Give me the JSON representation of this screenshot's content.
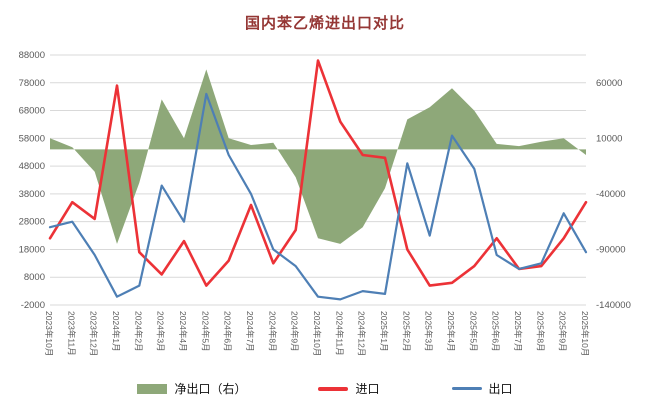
{
  "colors": {
    "title": "#953735",
    "net_export_area": "#8ea879",
    "import_line": "#ec3237",
    "export_line": "#4e7fb5",
    "gridline": "#d9d9d9",
    "axis_text": "#595959"
  },
  "chart_data": {
    "type": "area+line",
    "title": "国内苯乙烯进出口对比",
    "categories": [
      "2023年10月",
      "2023年11月",
      "2023年12月",
      "2024年1月",
      "2024年2月",
      "2024年3月",
      "2024年4月",
      "2024年5月",
      "2024年6月",
      "2024年7月",
      "2024年8月",
      "2024年9月",
      "2024年10月",
      "2024年11月",
      "2024年12月",
      "2025年1月",
      "2025年2月",
      "2025年3月",
      "2025年4月",
      "2025年5月",
      "2025年6月",
      "2025年7月",
      "2025年8月",
      "2025年9月",
      "2025年10月"
    ],
    "series": [
      {
        "name": "净出口（右）",
        "type": "area",
        "axis": "right",
        "values": [
          10000,
          2000,
          -20000,
          -85000,
          -30000,
          45000,
          10000,
          72000,
          10000,
          4000,
          6000,
          -25000,
          -80000,
          -85000,
          -70000,
          -35000,
          27000,
          38000,
          55000,
          35000,
          5000,
          3000,
          7000,
          10000,
          -5000
        ]
      },
      {
        "name": "进口",
        "type": "line",
        "axis": "left",
        "values": [
          22000,
          35000,
          29000,
          77000,
          17000,
          9000,
          21000,
          5000,
          14000,
          34000,
          13000,
          25000,
          86000,
          64000,
          52000,
          51000,
          18000,
          5000,
          6000,
          12000,
          22000,
          11000,
          12000,
          22000,
          35000
        ]
      },
      {
        "name": "出口",
        "type": "line",
        "axis": "left",
        "values": [
          26000,
          28000,
          16000,
          1000,
          5000,
          41000,
          28000,
          74000,
          52000,
          38000,
          18000,
          12000,
          1000,
          0,
          3000,
          2000,
          49000,
          23000,
          59000,
          47000,
          16000,
          11000,
          13000,
          31000,
          17000
        ]
      }
    ],
    "left_axis": {
      "min": -2000,
      "max": 88000,
      "ticks": [
        -2000,
        8000,
        18000,
        28000,
        38000,
        48000,
        58000,
        68000,
        78000,
        88000
      ]
    },
    "right_axis": {
      "min": -140000,
      "max": 60000,
      "ticks": [
        -140000,
        -90000,
        -40000,
        10000,
        60000
      ],
      "aligns_to_left": {
        "min": -2000,
        "max": 78000
      }
    },
    "grid": true,
    "legend_position": "bottom"
  }
}
